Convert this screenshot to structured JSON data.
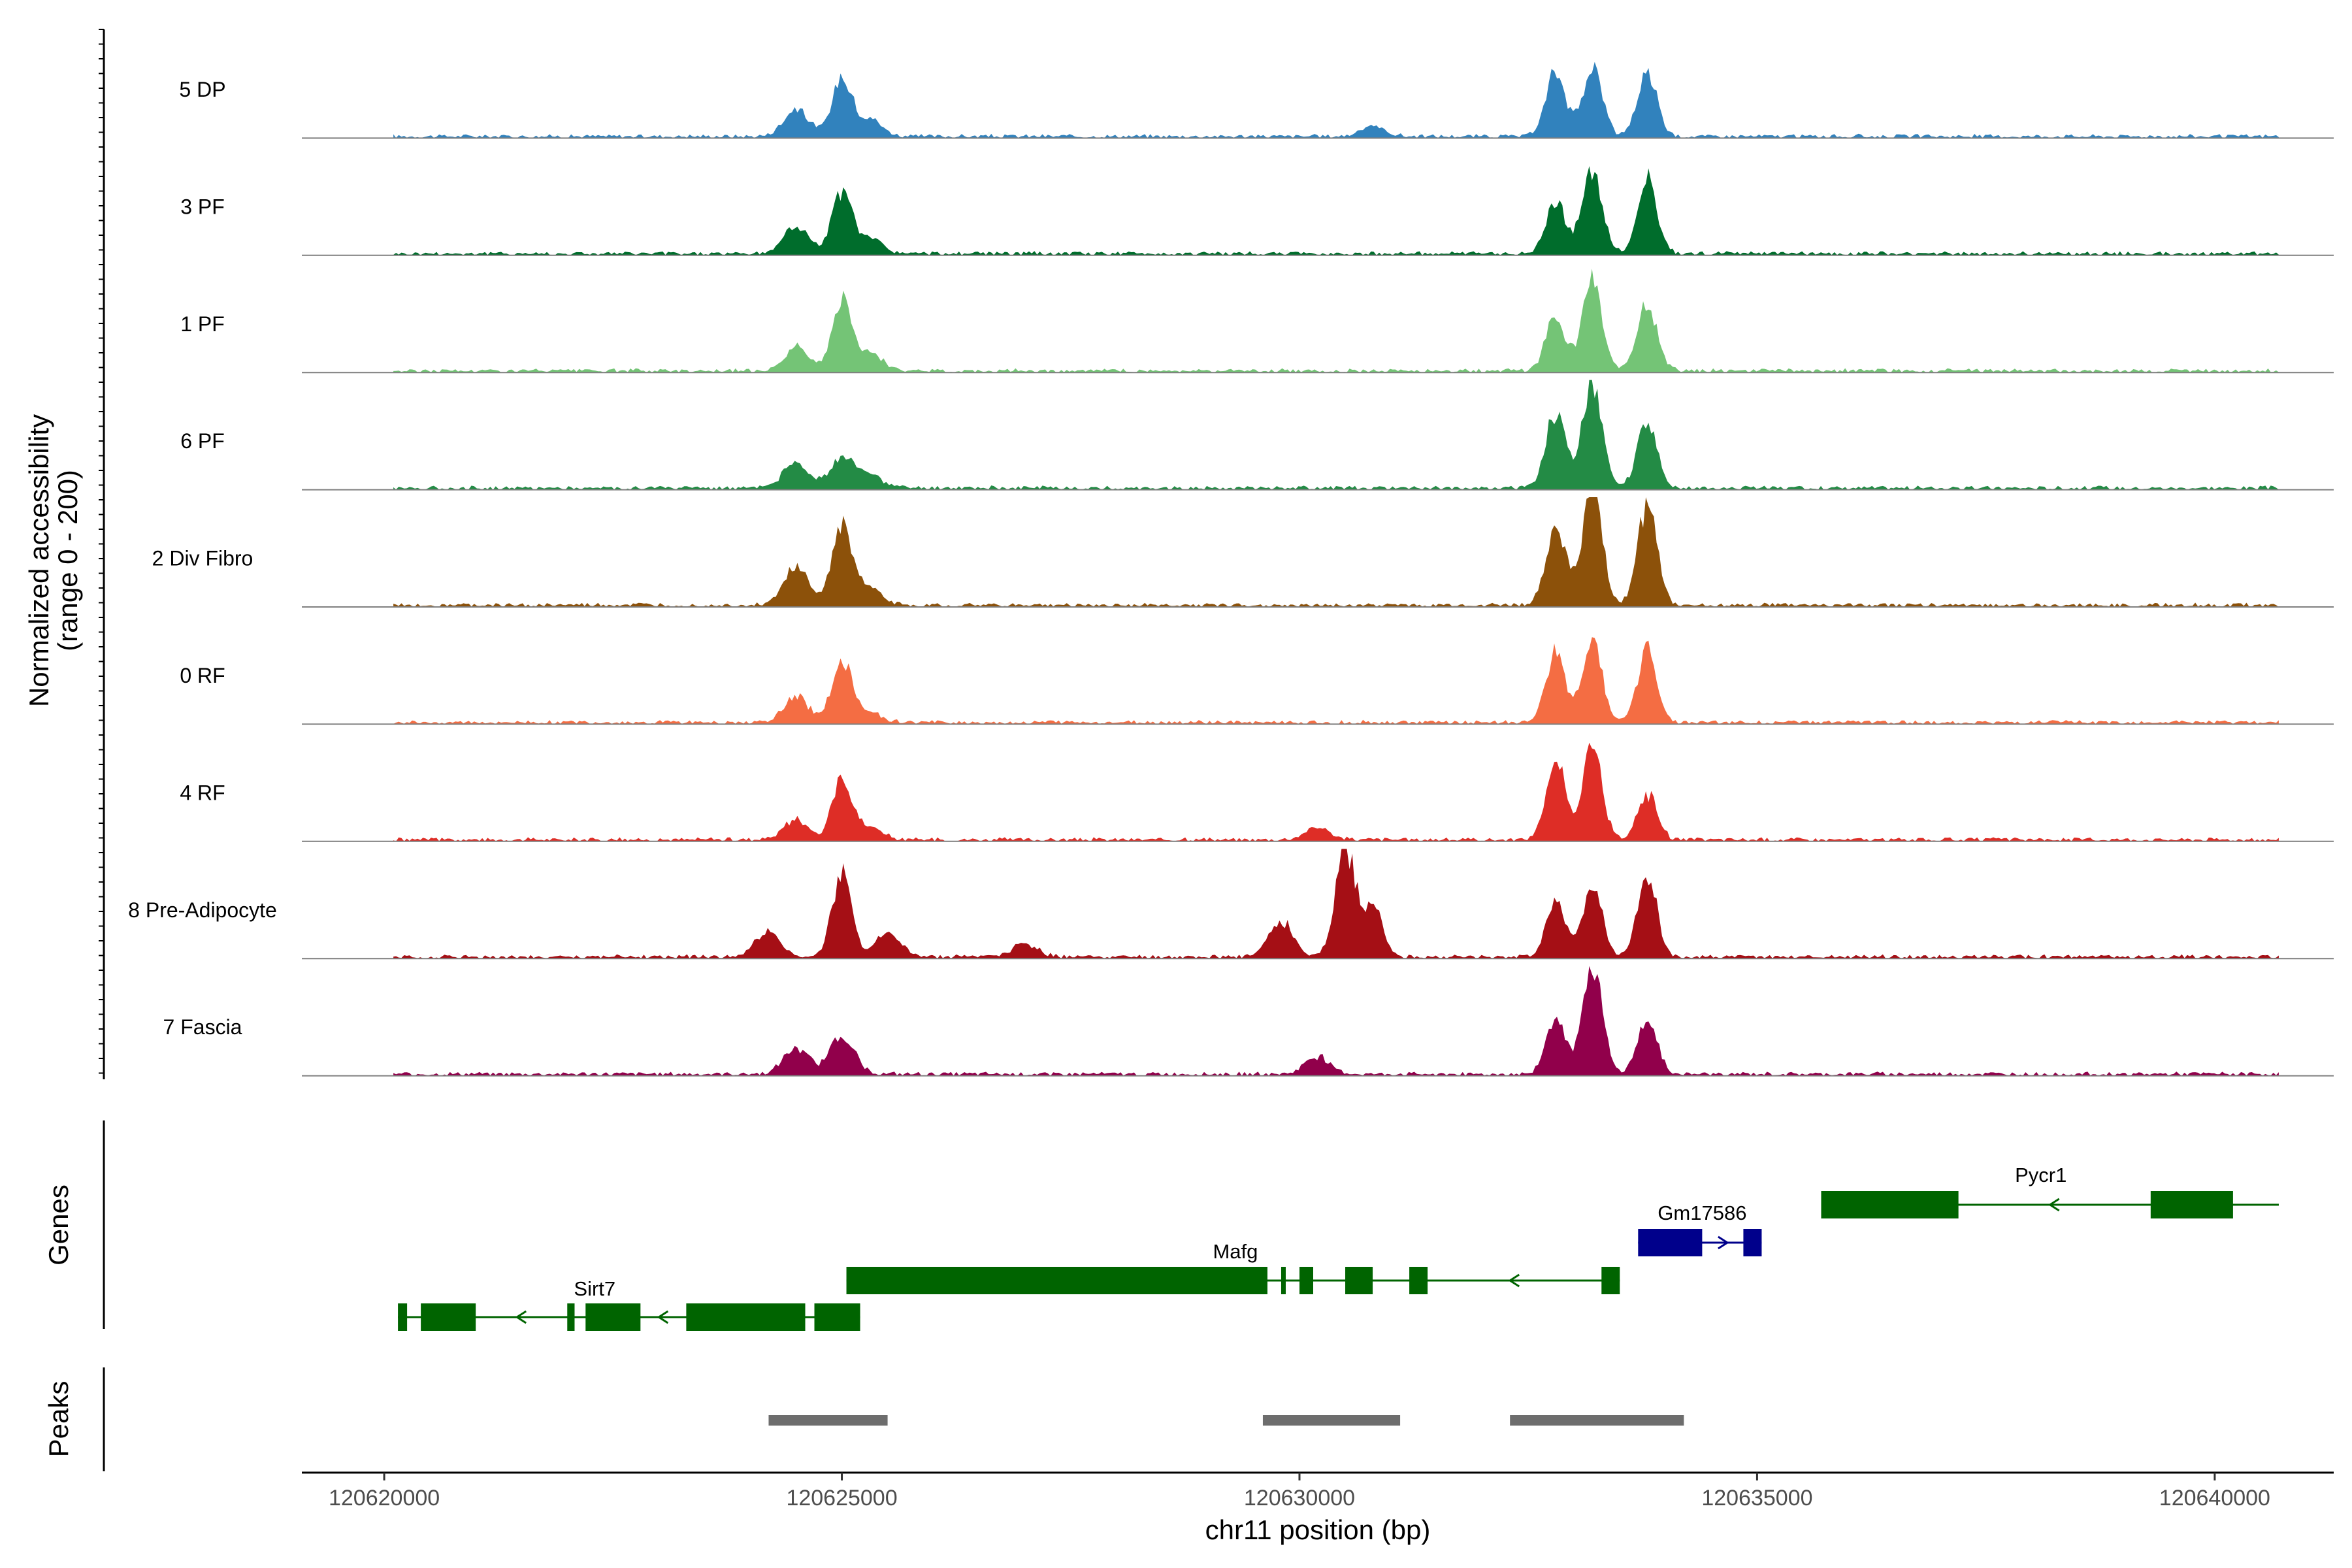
{
  "chart_data": {
    "type": "area",
    "y_axis": {
      "title_line1": "Normalized accessibility",
      "title_line2": "(range 0 - 200)",
      "ylim": [
        0,
        200
      ]
    },
    "x_axis": {
      "title": "chr11 position (bp)",
      "xlim": [
        120619100,
        120641300
      ],
      "ticks": [
        120620000,
        120625000,
        120630000,
        120635000,
        120640000
      ],
      "tick_labels": [
        "120620000",
        "120625000",
        "120630000",
        "120635000",
        "120640000"
      ]
    },
    "tracks": [
      {
        "name": "5 DP",
        "color": "#3182bd",
        "peaks": [
          [
            120624500,
            22
          ],
          [
            120625000,
            46
          ],
          [
            120625300,
            14
          ],
          [
            120630800,
            8
          ],
          [
            120632800,
            50
          ],
          [
            120633200,
            56
          ],
          [
            120633800,
            50
          ]
        ]
      },
      {
        "name": "3 PF",
        "color": "#006d2c",
        "peaks": [
          [
            120624500,
            22
          ],
          [
            120625000,
            48
          ],
          [
            120625300,
            12
          ],
          [
            120632800,
            40
          ],
          [
            120633200,
            66
          ],
          [
            120633800,
            58
          ]
        ]
      },
      {
        "name": "1 PF",
        "color": "#74c476",
        "peaks": [
          [
            120624500,
            18
          ],
          [
            120625000,
            52
          ],
          [
            120625300,
            14
          ],
          [
            120632800,
            42
          ],
          [
            120633200,
            72
          ],
          [
            120633800,
            52
          ]
        ]
      },
      {
        "name": "6 PF",
        "color": "#238b45",
        "peaks": [
          [
            120624500,
            20
          ],
          [
            120625000,
            24
          ],
          [
            120625300,
            10
          ],
          [
            120632800,
            58
          ],
          [
            120633200,
            84
          ],
          [
            120633800,
            54
          ]
        ]
      },
      {
        "name": "2 Div Fibro",
        "color": "#8c510a",
        "peaks": [
          [
            120624500,
            30
          ],
          [
            120625000,
            62
          ],
          [
            120625300,
            14
          ],
          [
            120632800,
            64
          ],
          [
            120633200,
            94
          ],
          [
            120633800,
            76
          ]
        ]
      },
      {
        "name": "0 RF",
        "color": "#f46d43",
        "peaks": [
          [
            120624500,
            20
          ],
          [
            120625000,
            50
          ],
          [
            120625300,
            8
          ],
          [
            120632800,
            54
          ],
          [
            120633200,
            66
          ],
          [
            120633800,
            58
          ]
        ]
      },
      {
        "name": "4 RF",
        "color": "#de2d26",
        "peaks": [
          [
            120624500,
            16
          ],
          [
            120625000,
            46
          ],
          [
            120625300,
            10
          ],
          [
            120630200,
            10
          ],
          [
            120632800,
            64
          ],
          [
            120633200,
            72
          ],
          [
            120633800,
            36
          ]
        ]
      },
      {
        "name": "8 Pre-Adipocyte",
        "color": "#a50f15",
        "peaks": [
          [
            120624200,
            20
          ],
          [
            120625000,
            66
          ],
          [
            120625500,
            18
          ],
          [
            120627000,
            10
          ],
          [
            120629800,
            28
          ],
          [
            120630500,
            86
          ],
          [
            120630800,
            40
          ],
          [
            120632800,
            44
          ],
          [
            120633200,
            56
          ],
          [
            120633800,
            62
          ]
        ]
      },
      {
        "name": "7 Fascia",
        "color": "#91004b",
        "peaks": [
          [
            120624500,
            20
          ],
          [
            120625000,
            30
          ],
          [
            120630200,
            14
          ],
          [
            120632800,
            46
          ],
          [
            120633200,
            86
          ],
          [
            120633800,
            42
          ]
        ]
      }
    ],
    "genes_panel_title": "Genes",
    "genes": [
      {
        "name": "Sirt7",
        "strand": "-",
        "color": "#006400",
        "start": 120620150,
        "end": 120625200,
        "exons": [
          [
            120620150,
            120620250
          ],
          [
            120620400,
            120621000
          ],
          [
            120622000,
            120622080
          ],
          [
            120622200,
            120622800
          ],
          [
            120623300,
            120624600
          ],
          [
            120624700,
            120625200
          ]
        ],
        "label_x": 120622300
      },
      {
        "name": "Mafg",
        "strand": "-",
        "color": "#006400",
        "start": 120625050,
        "end": 120633500,
        "exons": [
          [
            120625050,
            120629650
          ],
          [
            120629800,
            120629850
          ],
          [
            120630000,
            120630150
          ],
          [
            120630500,
            120630800
          ],
          [
            120631200,
            120631400
          ],
          [
            120633300,
            120633500
          ]
        ],
        "label_x": 120629300
      },
      {
        "name": "Gm17586",
        "strand": "+",
        "color": "#00008b",
        "start": 120633700,
        "end": 120635050,
        "exons": [
          [
            120633700,
            120634400
          ],
          [
            120634850,
            120635050
          ]
        ],
        "label_x": 120634400
      },
      {
        "name": "Pycr1",
        "strand": "-",
        "color": "#006400",
        "start": 120635700,
        "end": 120640700,
        "exons": [
          [
            120635700,
            120637200
          ],
          [
            120639300,
            120640200
          ]
        ],
        "label_x": 120638100
      }
    ],
    "peaks_panel_title": "Peaks",
    "peak_regions": [
      [
        120624200,
        120625500
      ],
      [
        120629600,
        120631100
      ],
      [
        120632300,
        120634200
      ]
    ],
    "peak_color": "#6d6d6d"
  }
}
